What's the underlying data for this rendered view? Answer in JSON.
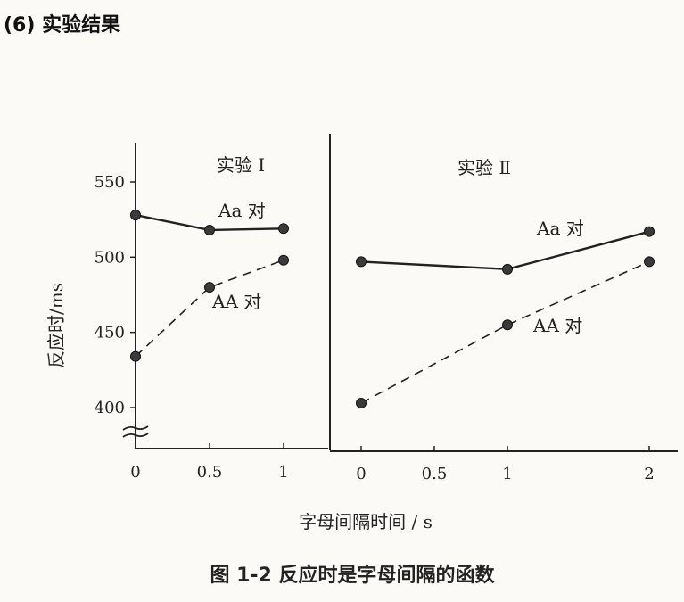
{
  "heading": "(6) 实验结果",
  "caption": "图 1-2  反应时是字母间隔的函数",
  "chart_data": [
    {
      "type": "line",
      "title": "实验 Ⅰ",
      "xlabel": "字母间隔时间 / s",
      "ylabel": "反应时/ms",
      "x": [
        0,
        0.5,
        1
      ],
      "xticks": [
        "0",
        "0.5",
        "1"
      ],
      "yticks": [
        "400",
        "450",
        "500",
        "550"
      ],
      "ylim": [
        380,
        570
      ],
      "axis_break": true,
      "grid": false,
      "series": [
        {
          "name": "Aa 对",
          "values": [
            528,
            518,
            519
          ],
          "style": "solid"
        },
        {
          "name": "AA 对",
          "values": [
            434,
            480,
            498
          ],
          "style": "dashed"
        }
      ]
    },
    {
      "type": "line",
      "title": "实验 Ⅱ",
      "xlabel": "字母间隔时间 / s",
      "x": [
        0,
        1,
        2
      ],
      "xticks": [
        "0",
        "0.5",
        "1",
        "2"
      ],
      "ylim": [
        380,
        570
      ],
      "grid": false,
      "series": [
        {
          "name": "Aa 对",
          "values": [
            497,
            492,
            517
          ],
          "style": "solid"
        },
        {
          "name": "AA 对",
          "values": [
            403,
            455,
            497
          ],
          "style": "dashed"
        }
      ]
    }
  ]
}
